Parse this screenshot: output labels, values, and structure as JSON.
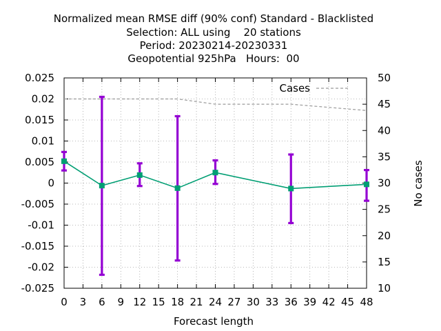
{
  "chart_data": {
    "type": "line",
    "title_lines": [
      "Normalized mean RMSE diff (90% conf) Standard - Blacklisted",
      "Selection: ALL using    20 stations",
      "Period: 20230214-20230331",
      "Geopotential 925hPa   Hours:  00"
    ],
    "xlabel": "Forecast length",
    "ylabel": "",
    "y2label": "No cases",
    "xlim": [
      0,
      48
    ],
    "ylim": [
      -0.025,
      0.025
    ],
    "y2lim": [
      10,
      50
    ],
    "x_ticks": [
      0,
      3,
      6,
      9,
      12,
      15,
      18,
      21,
      24,
      27,
      30,
      33,
      36,
      39,
      42,
      45,
      48
    ],
    "y_ticks": [
      -0.025,
      -0.02,
      -0.015,
      -0.01,
      -0.005,
      0,
      0.005,
      0.01,
      0.015,
      0.02,
      0.025
    ],
    "y_tick_labels": [
      "-0.025",
      "-0.02",
      "-0.015",
      "-0.01",
      "-0.005",
      "0",
      "0.005",
      "0.01",
      "0.015",
      "0.02",
      "0.025"
    ],
    "y2_ticks": [
      10,
      15,
      20,
      25,
      30,
      35,
      40,
      45,
      50
    ],
    "grid": true,
    "legend_position": "top-right",
    "series": [
      {
        "name": "",
        "style": "line-with-errorbars",
        "color": "#009e73",
        "errorbar_color": "#9400d3",
        "x": [
          0,
          6,
          12,
          18,
          24,
          36,
          48
        ],
        "y": [
          0.0052,
          -0.0006,
          0.0019,
          -0.0012,
          0.0025,
          -0.0013,
          -0.0003
        ],
        "err_low": [
          0.003,
          -0.0218,
          -0.0007,
          -0.0184,
          -0.0002,
          -0.0095,
          -0.0042
        ],
        "err_high": [
          0.0074,
          0.0205,
          0.0047,
          0.0159,
          0.0054,
          0.0068,
          0.0031
        ]
      },
      {
        "name": "Cases",
        "style": "dashed",
        "axis": "y2",
        "color": "#999999",
        "x": [
          0,
          6,
          12,
          18,
          24,
          36,
          48
        ],
        "y": [
          46,
          46,
          46,
          46,
          45,
          45,
          43.8
        ]
      }
    ]
  }
}
